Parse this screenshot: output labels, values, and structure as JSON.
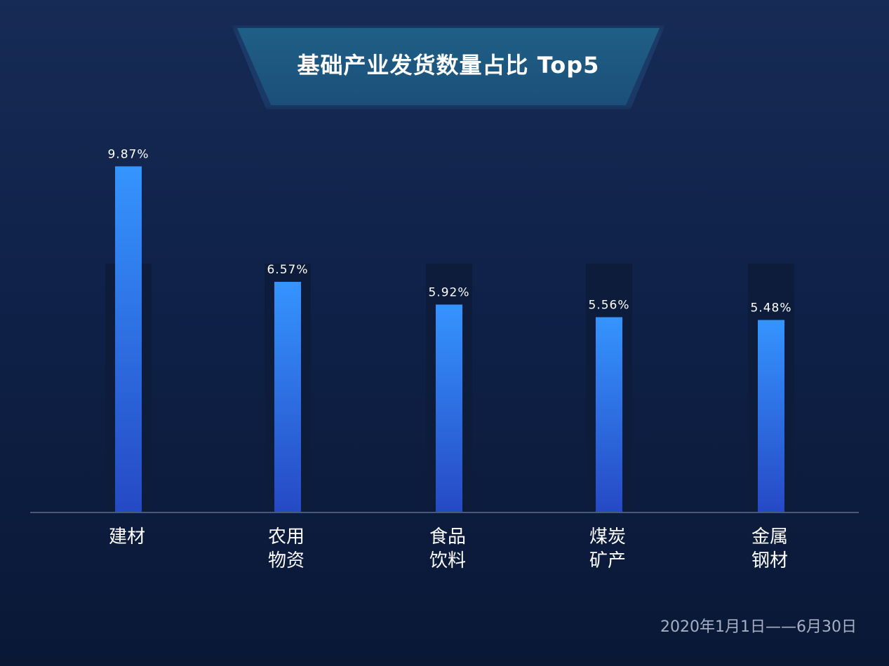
{
  "title": "基础产业发货数量占比 Top5",
  "date_range": "2020年1月1日——6月30日",
  "chart_data": {
    "type": "bar",
    "title": "基础产业发货数量占比 Top5",
    "categories": [
      [
        "建材"
      ],
      [
        "农用",
        "物资"
      ],
      [
        "食品",
        "饮料"
      ],
      [
        "煤炭",
        "矿产"
      ],
      [
        "金属",
        "钢材"
      ]
    ],
    "values": [
      9.87,
      6.57,
      5.92,
      5.56,
      5.48
    ],
    "data_labels": [
      "9.87%",
      "6.57%",
      "5.92%",
      "5.56%",
      "5.48%"
    ],
    "unit": "%",
    "ylim": [
      0,
      12.5
    ],
    "grid": false,
    "legend": "none",
    "colors": {
      "bar_top": "#3594ff",
      "bar_bottom": "#2649c5",
      "track": "#0d1c3a",
      "baseline": "#4c5878",
      "label": "#ffffff"
    }
  }
}
